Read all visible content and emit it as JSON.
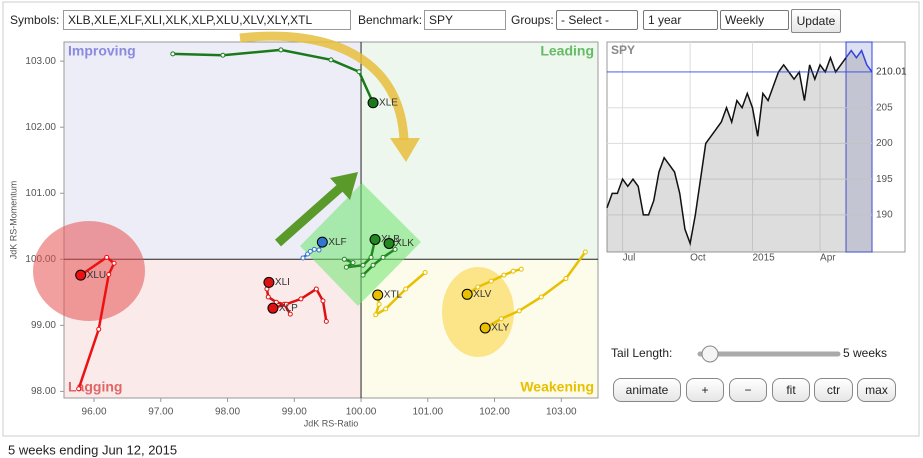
{
  "controls": {
    "symbols_label": "Symbols:",
    "symbols": "XLB,XLE,XLF,XLI,XLK,XLP,XLU,XLV,XLY,XTL",
    "benchmark_label": "Benchmark:",
    "benchmark": "SPY",
    "groups_label": "Groups:",
    "groups": "- Select -",
    "period": "1 year",
    "interval": "Weekly",
    "update": "Update",
    "tail_length_label": "Tail Length:",
    "tail_length_text": "5 weeks",
    "buttons": [
      "animate",
      "+",
      "−",
      "fit",
      "ctr",
      "max"
    ]
  },
  "footer": "5 weeks ending Jun 12, 2015",
  "chart_data": [
    {
      "type": "rrg",
      "xlabel": "JdK RS-Ratio",
      "ylabel": "JdK RS-Momentum",
      "center": 100,
      "xlim": [
        95.55,
        103.55
      ],
      "ylim": [
        97.9,
        103.29
      ],
      "xticks": [
        {
          "value": 96,
          "label": "96.00"
        },
        {
          "value": 97,
          "label": "97.00"
        },
        {
          "value": 98,
          "label": "98.00"
        },
        {
          "value": 99,
          "label": "99.00"
        },
        {
          "value": 100,
          "label": "100.00"
        },
        {
          "value": 101,
          "label": "101.00"
        },
        {
          "value": 102,
          "label": "102.00"
        },
        {
          "value": 103,
          "label": "103.00"
        }
      ],
      "yticks": [
        {
          "value": 98,
          "label": "98.00"
        },
        {
          "value": 99,
          "label": "99.00"
        },
        {
          "value": 100,
          "label": "100.00"
        },
        {
          "value": 101,
          "label": "101.00"
        },
        {
          "value": 102,
          "label": "102.00"
        },
        {
          "value": 103,
          "label": "103.00"
        }
      ],
      "quadrants": [
        {
          "name": "Improving",
          "color": "#8a8ae0",
          "fill": "#ededf8"
        },
        {
          "name": "Leading",
          "color": "#66bb66",
          "fill": "#eef7ee"
        },
        {
          "name": "Lagging",
          "color": "#e06666",
          "fill": "#fbeaea"
        },
        {
          "name": "Weakening",
          "color": "#e8c000",
          "fill": "#fdfbea"
        }
      ],
      "series": [
        {
          "name": "XLE",
          "color": "#1a7a1a",
          "x": [
            97.18,
            97.93,
            98.8,
            99.55,
            99.97,
            100.18
          ],
          "values": [
            103.11,
            103.09,
            103.17,
            103.02,
            102.84,
            102.37
          ]
        },
        {
          "name": "XLU",
          "color": "#ee1111",
          "x": [
            95.77,
            96.07,
            96.22,
            96.3,
            96.19,
            95.8
          ],
          "values": [
            98.04,
            98.94,
            99.77,
            99.94,
            100.03,
            99.76
          ]
        },
        {
          "name": "XLF",
          "color": "#3377cc",
          "x": [
            99.13,
            99.2,
            99.24,
            99.3,
            99.37,
            99.42
          ],
          "values": [
            100.02,
            100.08,
            100.12,
            100.15,
            100.14,
            100.26
          ]
        },
        {
          "name": "XLB",
          "color": "#228822",
          "x": [
            99.75,
            99.88,
            99.78,
            100.03,
            100.15,
            100.21
          ],
          "values": [
            100.0,
            99.95,
            99.88,
            99.91,
            100.03,
            100.3
          ]
        },
        {
          "name": "XLK",
          "color": "#228822",
          "x": [
            100.03,
            100.18,
            100.33,
            100.51,
            100.48,
            100.42
          ],
          "values": [
            99.76,
            99.91,
            100.03,
            100.15,
            100.2,
            100.24
          ]
        },
        {
          "name": "XLI",
          "color": "#dd1111",
          "x": [
            98.94,
            98.85,
            98.73,
            98.61,
            98.59,
            98.62
          ],
          "values": [
            99.17,
            99.32,
            99.35,
            99.43,
            99.55,
            99.65
          ]
        },
        {
          "name": "XLP",
          "color": "#dd1111",
          "x": [
            99.48,
            99.43,
            99.33,
            99.1,
            98.88,
            98.68
          ],
          "values": [
            99.06,
            99.37,
            99.55,
            99.4,
            99.32,
            99.26
          ]
        },
        {
          "name": "XTL",
          "color": "#e8c000",
          "x": [
            100.96,
            100.67,
            100.37,
            100.22,
            100.27,
            100.25
          ],
          "values": [
            99.8,
            99.55,
            99.25,
            99.16,
            99.32,
            99.46
          ]
        },
        {
          "name": "XLV",
          "color": "#e8c000",
          "x": [
            102.4,
            102.28,
            102.14,
            101.95,
            101.75,
            101.59
          ],
          "values": [
            99.85,
            99.82,
            99.76,
            99.67,
            99.58,
            99.47
          ]
        },
        {
          "name": "XLY",
          "color": "#e8c000",
          "x": [
            103.36,
            103.07,
            102.7,
            102.37,
            102.1,
            101.86
          ],
          "values": [
            100.11,
            99.71,
            99.43,
            99.22,
            99.1,
            98.96
          ]
        }
      ]
    },
    {
      "type": "line",
      "title": "SPY",
      "color": "#111111",
      "highlight_color": "#3344dd",
      "tail_length": 5,
      "values": [
        191,
        193,
        193,
        195,
        194,
        195,
        194,
        190,
        190,
        192,
        196,
        198,
        197,
        196,
        193,
        188,
        186,
        190,
        195,
        200,
        201,
        202,
        203,
        205,
        203,
        206,
        205,
        207,
        205,
        201,
        207,
        206,
        208,
        210,
        211,
        210,
        209,
        210,
        206,
        211,
        209,
        211,
        210,
        212,
        210,
        211,
        212,
        213,
        212,
        213,
        211,
        210.01
      ],
      "xlim": [
        0,
        51
      ],
      "ylim": [
        184.8,
        214.2
      ],
      "xticks": [
        {
          "value": 3,
          "label": "Jul"
        },
        {
          "value": 16,
          "label": "Oct"
        },
        {
          "value": 28,
          "label": "2015"
        },
        {
          "value": 41,
          "label": "Apr"
        }
      ],
      "yticks": [
        190,
        195,
        200,
        205
      ]
    }
  ]
}
